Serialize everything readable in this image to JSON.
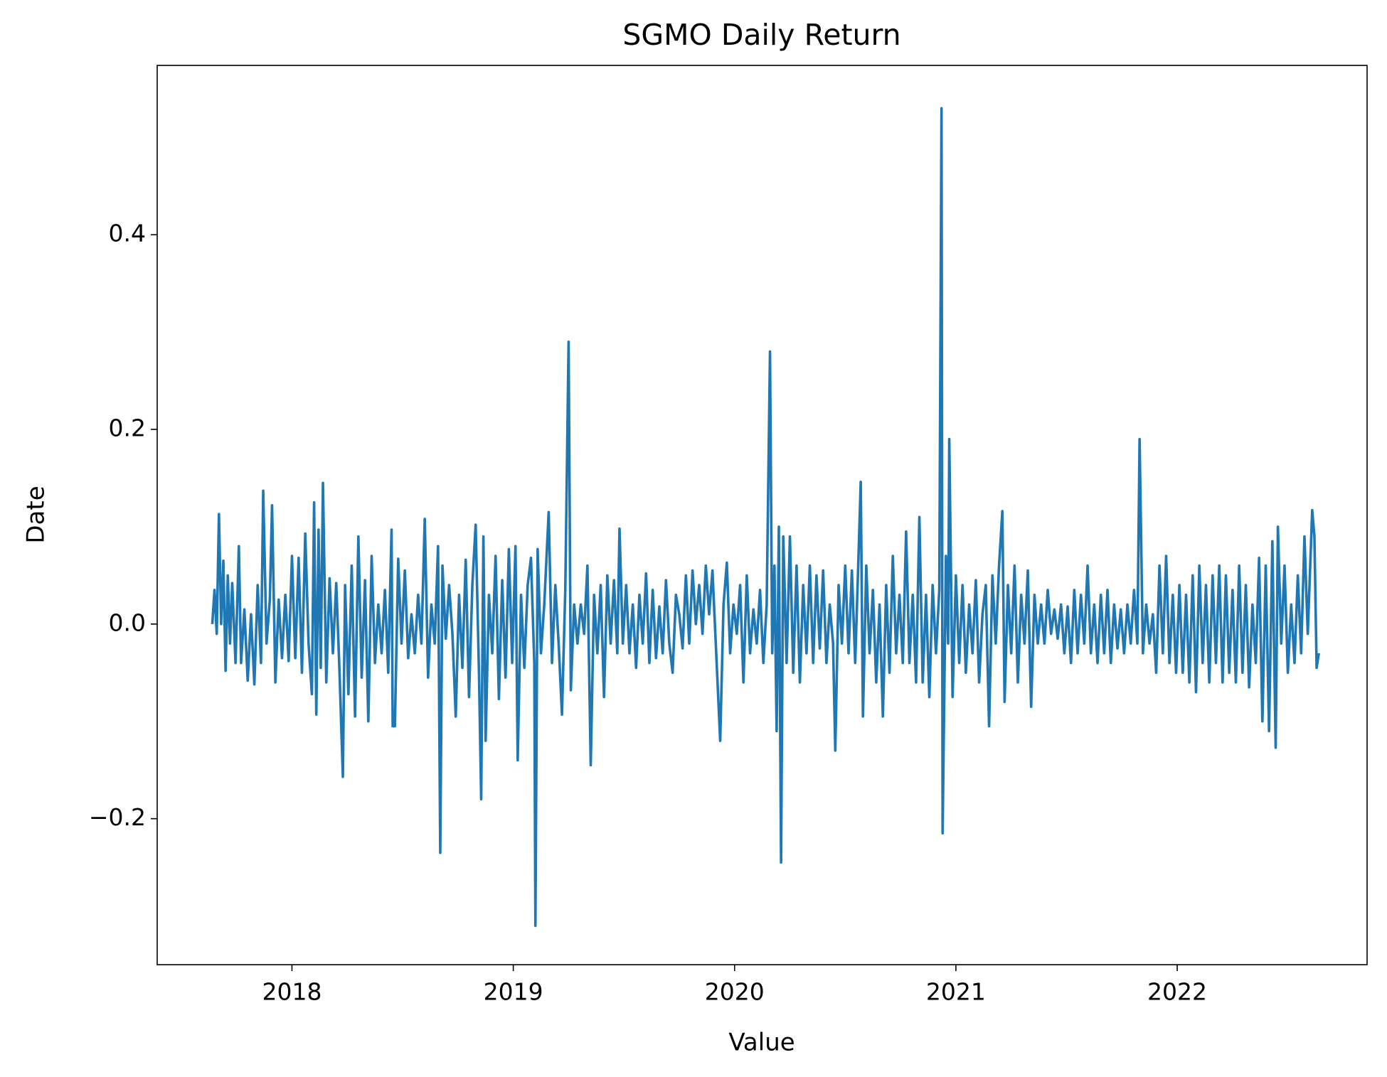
{
  "chart_data": {
    "type": "line",
    "title": "SGMO Daily Return",
    "x_label": "Value",
    "y_label": "Date",
    "color": "#1f77b4",
    "xlim": [
      2017.391,
      2022.858
    ],
    "ylim": [
      -0.35,
      0.574
    ],
    "xticks": [
      2018,
      2019,
      2020,
      2021,
      2022
    ],
    "yticks": [
      {
        "value": -0.2,
        "label": "−0.2"
      },
      {
        "value": 0,
        "label": "0.0"
      },
      0.2,
      0.4
    ],
    "x": [
      2017.64,
      2017.65,
      2017.66,
      2017.67,
      2017.68,
      2017.69,
      2017.7,
      2017.71,
      2017.72,
      2017.73,
      2017.745,
      2017.76,
      2017.77,
      2017.785,
      2017.8,
      2017.815,
      2017.83,
      2017.845,
      2017.86,
      2017.87,
      2017.885,
      2017.9,
      2017.91,
      2017.925,
      2017.94,
      2017.955,
      2017.97,
      2017.985,
      2018.0,
      2018.015,
      2018.03,
      2018.045,
      2018.06,
      2018.075,
      2018.09,
      2018.1,
      2018.11,
      2018.12,
      2018.13,
      2018.14,
      2018.155,
      2018.17,
      2018.185,
      2018.2,
      2018.215,
      2018.23,
      2018.24,
      2018.255,
      2018.27,
      2018.285,
      2018.3,
      2018.315,
      2018.33,
      2018.345,
      2018.36,
      2018.375,
      2018.39,
      2018.405,
      2018.42,
      2018.435,
      2018.45,
      2018.455,
      2018.465,
      2018.48,
      2018.495,
      2018.51,
      2018.525,
      2018.54,
      2018.555,
      2018.57,
      2018.585,
      2018.6,
      2018.615,
      2018.63,
      2018.645,
      2018.66,
      2018.67,
      2018.68,
      2018.695,
      2018.71,
      2018.725,
      2018.74,
      2018.755,
      2018.77,
      2018.785,
      2018.8,
      2018.815,
      2018.83,
      2018.845,
      2018.855,
      2018.865,
      2018.875,
      2018.89,
      2018.905,
      2018.92,
      2018.935,
      2018.95,
      2018.965,
      2018.98,
      2018.995,
      2019.01,
      2019.02,
      2019.035,
      2019.05,
      2019.065,
      2019.08,
      2019.095,
      2019.1,
      2019.11,
      2019.125,
      2019.14,
      2019.16,
      2019.175,
      2019.19,
      2019.205,
      2019.22,
      2019.235,
      2019.25,
      2019.26,
      2019.275,
      2019.29,
      2019.305,
      2019.32,
      2019.335,
      2019.35,
      2019.365,
      2019.38,
      2019.395,
      2019.41,
      2019.425,
      2019.44,
      2019.455,
      2019.47,
      2019.48,
      2019.495,
      2019.51,
      2019.525,
      2019.54,
      2019.555,
      2019.57,
      2019.585,
      2019.6,
      2019.615,
      2019.63,
      2019.645,
      2019.66,
      2019.675,
      2019.69,
      2019.705,
      2019.72,
      2019.735,
      2019.75,
      2019.765,
      2019.78,
      2019.795,
      2019.81,
      2019.825,
      2019.84,
      2019.855,
      2019.87,
      2019.885,
      2019.9,
      2019.915,
      2019.935,
      2019.95,
      2019.965,
      2019.98,
      2019.995,
      2020.01,
      2020.025,
      2020.04,
      2020.055,
      2020.07,
      2020.085,
      2020.1,
      2020.115,
      2020.13,
      2020.145,
      2020.16,
      2020.17,
      2020.18,
      2020.19,
      2020.2,
      2020.21,
      2020.22,
      2020.235,
      2020.25,
      2020.265,
      2020.28,
      2020.295,
      2020.31,
      2020.325,
      2020.34,
      2020.355,
      2020.37,
      2020.385,
      2020.4,
      2020.415,
      2020.43,
      2020.445,
      2020.455,
      2020.47,
      2020.485,
      2020.5,
      2020.515,
      2020.53,
      2020.545,
      2020.56,
      2020.57,
      2020.58,
      2020.595,
      2020.61,
      2020.625,
      2020.64,
      2020.655,
      2020.67,
      2020.685,
      2020.7,
      2020.715,
      2020.73,
      2020.745,
      2020.76,
      2020.775,
      2020.79,
      2020.805,
      2020.82,
      2020.835,
      2020.85,
      2020.865,
      2020.88,
      2020.895,
      2020.91,
      2020.925,
      2020.935,
      2020.94,
      2020.955,
      2020.965,
      2020.97,
      2020.985,
      2021.0,
      2021.015,
      2021.03,
      2021.045,
      2021.06,
      2021.075,
      2021.09,
      2021.105,
      2021.12,
      2021.135,
      2021.15,
      2021.165,
      2021.18,
      2021.195,
      2021.21,
      2021.22,
      2021.235,
      2021.25,
      2021.265,
      2021.28,
      2021.295,
      2021.31,
      2021.325,
      2021.34,
      2021.355,
      2021.37,
      2021.385,
      2021.4,
      2021.415,
      2021.43,
      2021.445,
      2021.46,
      2021.475,
      2021.49,
      2021.505,
      2021.52,
      2021.535,
      2021.55,
      2021.565,
      2021.58,
      2021.595,
      2021.61,
      2021.625,
      2021.64,
      2021.655,
      2021.67,
      2021.685,
      2021.7,
      2021.715,
      2021.73,
      2021.745,
      2021.76,
      2021.775,
      2021.79,
      2021.805,
      2021.82,
      2021.83,
      2021.845,
      2021.86,
      2021.875,
      2021.89,
      2021.905,
      2021.92,
      2021.935,
      2021.95,
      2021.965,
      2021.98,
      2021.995,
      2022.01,
      2022.025,
      2022.04,
      2022.055,
      2022.07,
      2022.085,
      2022.1,
      2022.115,
      2022.13,
      2022.145,
      2022.16,
      2022.175,
      2022.19,
      2022.205,
      2022.22,
      2022.235,
      2022.25,
      2022.265,
      2022.28,
      2022.295,
      2022.31,
      2022.325,
      2022.34,
      2022.355,
      2022.37,
      2022.385,
      2022.4,
      2022.415,
      2022.43,
      2022.445,
      2022.455,
      2022.47,
      2022.485,
      2022.5,
      2022.515,
      2022.53,
      2022.545,
      2022.56,
      2022.575,
      2022.59,
      2022.61,
      2022.62,
      2022.63,
      2022.64
    ],
    "values": [
      0.0,
      0.035,
      -0.01,
      0.113,
      0.0,
      0.065,
      -0.048,
      0.05,
      -0.02,
      0.042,
      -0.04,
      0.08,
      -0.04,
      0.015,
      -0.058,
      0.01,
      -0.062,
      0.04,
      -0.04,
      0.137,
      -0.02,
      0.025,
      0.122,
      -0.06,
      0.025,
      -0.035,
      0.03,
      -0.038,
      0.07,
      -0.035,
      0.068,
      -0.05,
      0.093,
      -0.02,
      -0.072,
      0.125,
      -0.093,
      0.097,
      -0.045,
      0.145,
      -0.06,
      0.047,
      -0.03,
      0.042,
      -0.05,
      -0.157,
      0.04,
      -0.072,
      0.06,
      -0.095,
      0.09,
      -0.055,
      0.045,
      -0.1,
      0.07,
      -0.04,
      0.02,
      -0.03,
      0.035,
      -0.05,
      0.097,
      -0.105,
      -0.105,
      0.067,
      -0.02,
      0.055,
      -0.035,
      0.01,
      -0.03,
      0.03,
      -0.02,
      0.108,
      -0.055,
      0.02,
      -0.02,
      0.08,
      -0.235,
      0.06,
      -0.015,
      0.04,
      -0.01,
      -0.095,
      0.03,
      -0.045,
      0.066,
      -0.075,
      0.04,
      0.102,
      -0.05,
      -0.18,
      0.09,
      -0.12,
      0.03,
      -0.03,
      0.07,
      -0.077,
      0.045,
      -0.055,
      0.077,
      -0.04,
      0.08,
      -0.14,
      0.03,
      -0.045,
      0.04,
      0.068,
      -0.04,
      -0.31,
      0.077,
      -0.03,
      0.02,
      0.115,
      -0.04,
      0.04,
      -0.02,
      -0.093,
      0.035,
      0.29,
      -0.068,
      0.02,
      -0.02,
      0.02,
      -0.01,
      0.06,
      -0.145,
      0.03,
      -0.03,
      0.04,
      -0.075,
      0.05,
      -0.02,
      0.045,
      -0.03,
      0.098,
      -0.02,
      0.04,
      -0.03,
      0.02,
      -0.045,
      0.03,
      -0.02,
      0.052,
      -0.04,
      0.035,
      -0.035,
      0.018,
      -0.03,
      0.045,
      -0.02,
      -0.05,
      0.03,
      0.01,
      -0.025,
      0.05,
      -0.02,
      0.055,
      0.0,
      0.04,
      -0.01,
      0.06,
      0.01,
      0.055,
      -0.02,
      -0.12,
      0.02,
      0.063,
      -0.03,
      0.02,
      -0.01,
      0.04,
      -0.06,
      0.05,
      -0.03,
      0.015,
      -0.02,
      0.035,
      -0.04,
      0.02,
      0.28,
      -0.03,
      0.06,
      -0.11,
      0.1,
      -0.245,
      0.09,
      -0.04,
      0.09,
      -0.05,
      0.06,
      -0.06,
      0.04,
      -0.03,
      0.06,
      -0.04,
      0.05,
      -0.025,
      0.055,
      -0.04,
      0.02,
      -0.02,
      -0.13,
      0.04,
      -0.02,
      0.06,
      -0.03,
      0.055,
      -0.04,
      0.07,
      0.146,
      -0.095,
      0.06,
      -0.03,
      0.035,
      -0.06,
      0.02,
      -0.095,
      0.04,
      -0.05,
      0.07,
      -0.03,
      0.03,
      -0.04,
      0.095,
      -0.04,
      0.03,
      -0.06,
      0.11,
      -0.06,
      0.03,
      -0.075,
      0.04,
      -0.03,
      0.035,
      0.53,
      -0.215,
      0.07,
      -0.02,
      0.19,
      -0.075,
      0.05,
      -0.04,
      0.04,
      -0.05,
      0.02,
      -0.03,
      0.045,
      -0.06,
      0.01,
      0.04,
      -0.105,
      0.05,
      -0.02,
      0.06,
      0.116,
      -0.08,
      0.04,
      -0.03,
      0.06,
      -0.06,
      0.03,
      -0.02,
      0.055,
      -0.085,
      0.03,
      -0.02,
      0.02,
      -0.02,
      0.035,
      -0.01,
      0.015,
      -0.015,
      0.02,
      -0.03,
      0.018,
      -0.04,
      0.035,
      -0.03,
      0.03,
      -0.02,
      0.06,
      -0.03,
      0.02,
      -0.04,
      0.03,
      -0.03,
      0.035,
      -0.04,
      0.02,
      -0.025,
      0.015,
      -0.03,
      0.02,
      -0.02,
      0.035,
      -0.02,
      0.19,
      -0.03,
      0.02,
      -0.02,
      0.01,
      -0.05,
      0.06,
      -0.03,
      0.07,
      -0.04,
      0.03,
      -0.05,
      0.04,
      -0.05,
      0.03,
      -0.06,
      0.05,
      -0.07,
      0.06,
      -0.04,
      0.04,
      -0.06,
      0.05,
      -0.04,
      0.06,
      -0.06,
      0.05,
      -0.05,
      0.035,
      -0.06,
      0.06,
      -0.05,
      0.04,
      -0.065,
      0.02,
      -0.04,
      0.068,
      -0.1,
      0.06,
      -0.11,
      0.085,
      -0.127,
      0.1,
      -0.02,
      0.06,
      -0.05,
      0.02,
      -0.04,
      0.05,
      -0.03,
      0.09,
      -0.01,
      0.117,
      0.09,
      -0.045,
      -0.03
    ],
    "grid": false
  }
}
